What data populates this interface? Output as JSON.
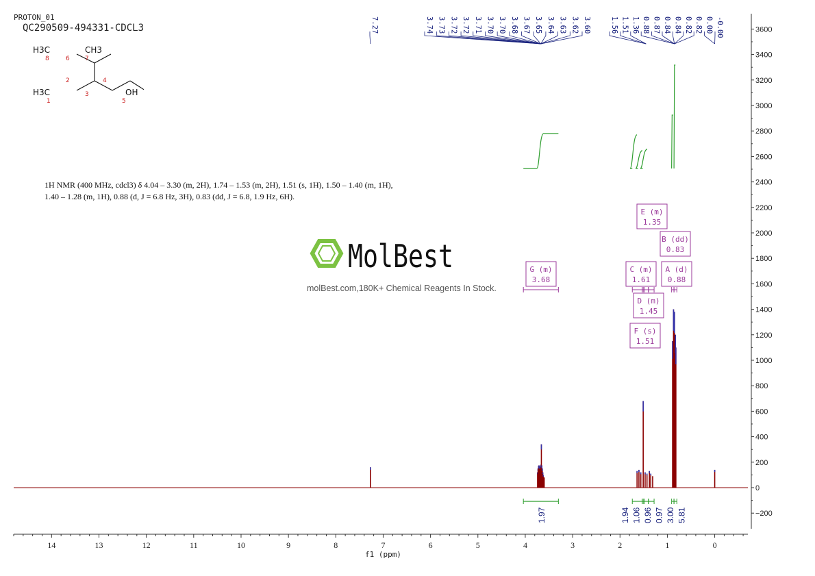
{
  "header": {
    "small_title": "PROTON_01",
    "title": "QC290509-494331-CDCL3"
  },
  "structure": {
    "labels": {
      "ch3_top_left": "H3C",
      "ch3_top_right": "CH3",
      "ch3_bottom": "H3C",
      "oh": "OH"
    },
    "atom_numbers": [
      "8",
      "6",
      "7",
      "2",
      "1",
      "3",
      "4",
      "5"
    ]
  },
  "nmr_description": {
    "line1": "1H NMR (400 MHz, cdcl3) δ 4.04 – 3.30 (m, 2H), 1.74 – 1.53 (m, 2H), 1.51 (s, 1H), 1.50 – 1.40 (m, 1H),",
    "line2": "1.40 – 1.28 (m, 1H), 0.88 (d, J = 6.8 Hz, 3H), 0.83 (dd, J = 6.8, 1.9 Hz, 6H)."
  },
  "watermark": {
    "brand": "MolBest",
    "caption": "molBest.com,180K+ Chemical Reagents In Stock."
  },
  "colors": {
    "spectrum": "#8b0000",
    "peak_labels": "#1a237e",
    "integration": "#2e9e2e",
    "multiplet_box": "#9b3a9b",
    "axis": "#333333",
    "watermark_green": "#7cc242"
  },
  "chart_data": {
    "type": "line",
    "title": "QC290509-494331-CDCL3",
    "xlabel": "f1 (ppm)",
    "ylabel": "",
    "xlim": [
      14.8,
      -0.7
    ],
    "ylim": [
      -350,
      3750
    ],
    "x_ticks": [
      14,
      13,
      12,
      11,
      10,
      9,
      8,
      7,
      6,
      5,
      4,
      3,
      2,
      1,
      0
    ],
    "y_ticks": [
      -200,
      0,
      200,
      400,
      600,
      800,
      1000,
      1200,
      1400,
      1600,
      1800,
      2000,
      2200,
      2400,
      2600,
      2800,
      3000,
      3200,
      3400,
      3600
    ],
    "peaks": [
      {
        "ppm": 7.27,
        "height": 160
      },
      {
        "ppm": 3.74,
        "height": 120
      },
      {
        "ppm": 3.73,
        "height": 150
      },
      {
        "ppm": 3.72,
        "height": 170
      },
      {
        "ppm": 3.71,
        "height": 175
      },
      {
        "ppm": 3.7,
        "height": 170
      },
      {
        "ppm": 3.68,
        "height": 165
      },
      {
        "ppm": 3.67,
        "height": 180
      },
      {
        "ppm": 3.66,
        "height": 340
      },
      {
        "ppm": 3.65,
        "height": 175
      },
      {
        "ppm": 3.64,
        "height": 150
      },
      {
        "ppm": 3.63,
        "height": 120
      },
      {
        "ppm": 3.62,
        "height": 100
      },
      {
        "ppm": 3.6,
        "height": 80
      },
      {
        "ppm": 1.64,
        "height": 130
      },
      {
        "ppm": 1.6,
        "height": 140
      },
      {
        "ppm": 1.56,
        "height": 120
      },
      {
        "ppm": 1.51,
        "height": 680
      },
      {
        "ppm": 1.47,
        "height": 120
      },
      {
        "ppm": 1.43,
        "height": 110
      },
      {
        "ppm": 1.38,
        "height": 130
      },
      {
        "ppm": 1.35,
        "height": 110
      },
      {
        "ppm": 1.31,
        "height": 90
      },
      {
        "ppm": 0.89,
        "height": 1150
      },
      {
        "ppm": 0.87,
        "height": 1400
      },
      {
        "ppm": 0.85,
        "height": 1380
      },
      {
        "ppm": 0.83,
        "height": 1200
      },
      {
        "ppm": 0.82,
        "height": 1100
      },
      {
        "ppm": 0.0,
        "height": 140
      }
    ],
    "peak_labels": {
      "group1": [
        "7.27"
      ],
      "group2": [
        "3.74",
        "3.73",
        "3.72",
        "3.72",
        "3.71",
        "3.70",
        "3.70",
        "3.68",
        "3.67",
        "3.65",
        "3.64",
        "3.63",
        "3.62",
        "3.60"
      ],
      "group3": [
        "1.56",
        "1.51",
        "1.36",
        "0.88",
        "0.87",
        "0.84",
        "0.84",
        "0.82",
        "0.82",
        "0.00",
        "-0.00"
      ]
    },
    "multiplets": [
      {
        "label": "G (m)",
        "shift": "3.68",
        "range": [
          4.04,
          3.3
        ]
      },
      {
        "label": "C (m)",
        "shift": "1.61",
        "range": [
          1.74,
          1.53
        ]
      },
      {
        "label": "E (m)",
        "shift": "1.35",
        "range": [
          1.4,
          1.28
        ]
      },
      {
        "label": "D (m)",
        "shift": "1.45",
        "range": [
          1.5,
          1.4
        ]
      },
      {
        "label": "F (s)",
        "shift": "1.51",
        "range": [
          1.53,
          1.49
        ]
      },
      {
        "label": "B (dd)",
        "shift": "0.83",
        "range": [
          0.86,
          0.8
        ]
      },
      {
        "label": "A (d)",
        "shift": "0.88",
        "range": [
          0.91,
          0.86
        ]
      }
    ],
    "integrals": [
      {
        "value": "1.97",
        "range": [
          4.04,
          3.3
        ]
      },
      {
        "value": "1.94",
        "range": [
          1.74,
          1.53
        ]
      },
      {
        "value": "1.06",
        "range": [
          1.53,
          1.49
        ]
      },
      {
        "value": "0.96",
        "range": [
          1.5,
          1.4
        ]
      },
      {
        "value": "0.97",
        "range": [
          1.4,
          1.28
        ]
      },
      {
        "value": "3.00",
        "range": [
          0.91,
          0.86
        ]
      },
      {
        "value": "5.81",
        "range": [
          0.86,
          0.8
        ]
      }
    ]
  }
}
